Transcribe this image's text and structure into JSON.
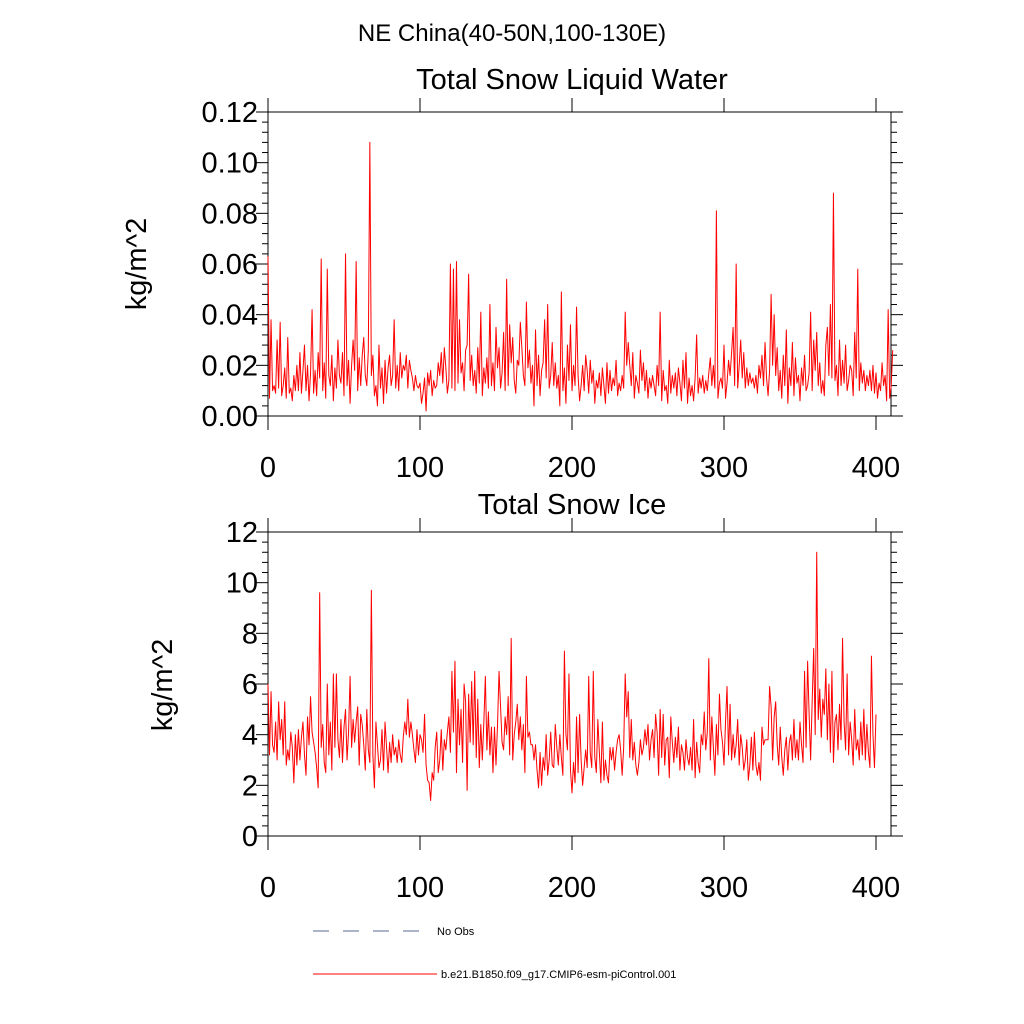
{
  "figure": {
    "suptitle": "NE China(40-50N,100-130E)"
  },
  "legend": {
    "items": [
      {
        "label": "No Obs",
        "color": "#5a6a9a",
        "style": "dashed"
      },
      {
        "label": "b.e21.B1850.f09_g17.CMIP6-esm-piControl.001",
        "color": "#ff0000",
        "style": "solid"
      }
    ]
  },
  "chart_data": [
    {
      "type": "line",
      "title": "Total Snow Liquid Water",
      "xlabel": "",
      "ylabel": "kg/m^2",
      "xlim": [
        0,
        400
      ],
      "ylim": [
        0,
        0.12
      ],
      "xticks": [
        "0",
        "100",
        "200",
        "300",
        "400"
      ],
      "yticks": [
        "0.00",
        "0.02",
        "0.04",
        "0.06",
        "0.08",
        "0.10",
        "0.12"
      ],
      "grid": false,
      "series": [
        {
          "name": "b.e21.B1850.f09_g17.CMIP6-esm-piControl.001",
          "color": "#ff0000",
          "x_start": 0,
          "x_step": 1,
          "values": [
            0.063,
            0.007,
            0.038,
            0.01,
            0.012,
            0.009,
            0.03,
            0.011,
            0.037,
            0.008,
            0.012,
            0.019,
            0.007,
            0.031,
            0.009,
            0.011,
            0.006,
            0.016,
            0.01,
            0.02,
            0.01,
            0.025,
            0.009,
            0.018,
            0.028,
            0.01,
            0.02,
            0.006,
            0.017,
            0.042,
            0.009,
            0.018,
            0.008,
            0.025,
            0.015,
            0.062,
            0.01,
            0.021,
            0.007,
            0.058,
            0.016,
            0.012,
            0.024,
            0.006,
            0.019,
            0.011,
            0.03,
            0.016,
            0.013,
            0.025,
            0.008,
            0.064,
            0.012,
            0.022,
            0.005,
            0.02,
            0.03,
            0.018,
            0.061,
            0.01,
            0.023,
            0.012,
            0.024,
            0.031,
            0.016,
            0.012,
            0.026,
            0.108,
            0.016,
            0.024,
            0.008,
            0.012,
            0.004,
            0.028,
            0.011,
            0.019,
            0.005,
            0.022,
            0.009,
            0.019,
            0.024,
            0.012,
            0.016,
            0.038,
            0.011,
            0.02,
            0.01,
            0.025,
            0.015,
            0.02,
            0.018,
            0.024,
            0.011,
            0.022,
            0.018,
            0.015,
            0.01,
            0.016,
            0.012,
            0.011,
            0.013,
            0.005,
            0.009,
            0.015,
            0.002,
            0.017,
            0.012,
            0.018,
            0.008,
            0.014,
            0.011,
            0.012,
            0.021,
            0.016,
            0.025,
            0.013,
            0.027,
            0.019,
            0.009,
            0.014,
            0.06,
            0.011,
            0.058,
            0.01,
            0.061,
            0.013,
            0.038,
            0.017,
            0.021,
            0.01,
            0.026,
            0.028,
            0.056,
            0.014,
            0.024,
            0.012,
            0.018,
            0.009,
            0.027,
            0.013,
            0.041,
            0.008,
            0.019,
            0.013,
            0.023,
            0.011,
            0.044,
            0.012,
            0.021,
            0.01,
            0.035,
            0.019,
            0.027,
            0.011,
            0.017,
            0.033,
            0.01,
            0.054,
            0.012,
            0.036,
            0.021,
            0.031,
            0.014,
            0.009,
            0.022,
            0.02,
            0.037,
            0.027,
            0.016,
            0.012,
            0.045,
            0.019,
            0.026,
            0.013,
            0.02,
            0.004,
            0.034,
            0.012,
            0.024,
            0.008,
            0.018,
            0.021,
            0.038,
            0.015,
            0.044,
            0.011,
            0.016,
            0.029,
            0.012,
            0.021,
            0.011,
            0.016,
            0.004,
            0.049,
            0.01,
            0.019,
            0.005,
            0.028,
            0.014,
            0.036,
            0.01,
            0.02,
            0.012,
            0.043,
            0.016,
            0.006,
            0.012,
            0.02,
            0.01,
            0.024,
            0.018,
            0.009,
            0.022,
            0.013,
            0.018,
            0.005,
            0.014,
            0.011,
            0.017,
            0.008,
            0.019,
            0.012,
            0.005,
            0.021,
            0.009,
            0.018,
            0.01,
            0.015,
            0.012,
            0.022,
            0.008,
            0.013,
            0.01,
            0.016,
            0.011,
            0.041,
            0.02,
            0.029,
            0.02,
            0.012,
            0.025,
            0.007,
            0.016,
            0.013,
            0.009,
            0.026,
            0.014,
            0.021,
            0.01,
            0.018,
            0.007,
            0.015,
            0.011,
            0.016,
            0.012,
            0.008,
            0.02,
            0.012,
            0.041,
            0.006,
            0.018,
            0.01,
            0.012,
            0.005,
            0.022,
            0.009,
            0.016,
            0.011,
            0.017,
            0.008,
            0.019,
            0.013,
            0.006,
            0.022,
            0.011,
            0.025,
            0.005,
            0.015,
            0.008,
            0.012,
            0.006,
            0.015,
            0.032,
            0.009,
            0.015,
            0.011,
            0.016,
            0.009,
            0.014,
            0.01,
            0.017,
            0.023,
            0.012,
            0.02,
            0.011,
            0.081,
            0.007,
            0.013,
            0.015,
            0.011,
            0.028,
            0.007,
            0.013,
            0.022,
            0.016,
            0.025,
            0.035,
            0.012,
            0.06,
            0.011,
            0.02,
            0.03,
            0.015,
            0.025,
            0.011,
            0.019,
            0.012,
            0.017,
            0.013,
            0.015,
            0.011,
            0.016,
            0.009,
            0.02,
            0.015,
            0.024,
            0.012,
            0.029,
            0.015,
            0.008,
            0.018,
            0.048,
            0.02,
            0.04,
            0.016,
            0.027,
            0.01,
            0.018,
            0.007,
            0.024,
            0.012,
            0.034,
            0.005,
            0.019,
            0.012,
            0.029,
            0.008,
            0.023,
            0.013,
            0.016,
            0.006,
            0.019,
            0.012,
            0.024,
            0.01,
            0.012,
            0.017,
            0.041,
            0.01,
            0.03,
            0.018,
            0.033,
            0.012,
            0.021,
            0.009,
            0.014,
            0.008,
            0.028,
            0.035,
            0.016,
            0.044,
            0.015,
            0.088,
            0.014,
            0.02,
            0.008,
            0.03,
            0.012,
            0.022,
            0.013,
            0.028,
            0.01,
            0.014,
            0.02,
            0.018,
            0.008,
            0.033,
            0.015,
            0.058,
            0.01,
            0.021,
            0.013,
            0.018,
            0.01,
            0.016,
            0.012,
            0.018,
            0.01,
            0.02,
            0.009,
            0.017,
            0.007,
            0.013,
            0.01,
            0.021,
            0.012,
            0.016,
            0.006,
            0.042,
            0.007,
            0.012,
            0.026
          ]
        }
      ]
    },
    {
      "type": "line",
      "title": "Total Snow Ice",
      "xlabel": "",
      "ylabel": "kg/m^2",
      "xlim": [
        0,
        400
      ],
      "ylim": [
        0,
        12
      ],
      "xticks": [
        "0",
        "100",
        "200",
        "300",
        "400"
      ],
      "yticks": [
        "0",
        "2",
        "4",
        "6",
        "8",
        "10",
        "12"
      ],
      "grid": false,
      "series": [
        {
          "name": "b.e21.B1850.f09_g17.CMIP6-esm-piControl.001",
          "color": "#ff0000",
          "x_start": 0,
          "x_step": 1,
          "values": [
            6.0,
            3.2,
            5.7,
            3.6,
            3.3,
            4.5,
            3.0,
            5.3,
            3.8,
            4.6,
            3.2,
            5.3,
            2.8,
            3.4,
            3.0,
            4.1,
            3.5,
            2.1,
            4.0,
            2.8,
            4.2,
            3.0,
            3.9,
            4.5,
            3.2,
            2.4,
            4.7,
            3.6,
            5.5,
            4.1,
            3.7,
            3.3,
            2.7,
            1.9,
            9.6,
            3.5,
            4.4,
            2.9,
            2.5,
            6.0,
            3.2,
            4.5,
            2.6,
            6.4,
            3.5,
            6.4,
            3.8,
            3.1,
            4.6,
            2.9,
            4.3,
            5.0,
            3.0,
            4.1,
            6.3,
            3.5,
            4.6,
            3.7,
            4.5,
            5.1,
            2.8,
            4.8,
            4.4,
            3.6,
            2.6,
            5.0,
            3.4,
            2.9,
            9.7,
            3.2,
            1.9,
            4.5,
            3.6,
            2.7,
            3.0,
            4.2,
            2.6,
            4.5,
            3.5,
            2.5,
            3.7,
            2.9,
            4.0,
            3.2,
            3.5,
            2.9,
            3.8,
            3.2,
            2.9,
            3.9,
            4.5,
            4.0,
            5.4,
            3.9,
            4.5,
            4.0,
            3.4,
            2.9,
            4.2,
            3.2,
            4.0,
            3.8,
            3.3,
            4.8,
            2.8,
            2.2,
            2.1,
            1.4,
            2.5,
            2.2,
            3.5,
            4.1,
            2.5,
            3.0,
            4.2,
            2.6,
            3.8,
            3.4,
            4.1,
            4.7,
            3.3,
            6.5,
            4.1,
            6.9,
            2.5,
            5.4,
            3.6,
            5.0,
            2.9,
            6.0,
            5.3,
            1.8,
            5.6,
            3.7,
            6.1,
            3.6,
            6.5,
            3.1,
            5.4,
            2.7,
            4.4,
            3.0,
            4.5,
            6.3,
            3.4,
            4.9,
            3.2,
            4.3,
            2.5,
            4.3,
            2.8,
            4.4,
            6.5,
            5.1,
            3.7,
            3.4,
            4.7,
            4.0,
            5.5,
            3.2,
            7.8,
            3.0,
            4.0,
            4.5,
            5.2,
            3.8,
            4.7,
            3.4,
            4.4,
            2.5,
            6.3,
            3.9,
            4.1,
            3.6,
            3.6,
            3.0,
            3.6,
            2.6,
            1.9,
            3.3,
            2.0,
            3.1,
            2.6,
            4.0,
            2.4,
            3.0,
            4.1,
            2.8,
            2.7,
            4.4,
            3.5,
            2.8,
            4.0,
            3.1,
            2.4,
            7.3,
            4.0,
            3.4,
            6.4,
            2.6,
            1.7,
            2.9,
            2.1,
            4.7,
            2.5,
            4.8,
            3.0,
            2.0,
            2.7,
            3.4,
            2.7,
            6.3,
            3.3,
            2.7,
            6.5,
            3.1,
            2.5,
            4.6,
            3.3,
            2.1,
            4.5,
            2.2,
            3.0,
            2.4,
            2.1,
            3.5,
            3.0,
            3.5,
            2.6,
            3.3,
            3.8,
            4.0,
            3.4,
            2.4,
            3.5,
            6.4,
            4.7,
            5.7,
            3.1,
            4.6,
            3.0,
            3.7,
            2.8,
            2.4,
            2.9,
            3.8,
            3.2,
            3.5,
            4.2,
            3.6,
            4.4,
            3.0,
            3.8,
            4.2,
            3.1,
            4.8,
            4.1,
            2.4,
            5.0,
            3.1,
            4.8,
            2.8,
            3.8,
            3.9,
            2.3,
            4.7,
            3.7,
            2.9,
            3.9,
            3.1,
            4.3,
            2.6,
            3.6,
            3.3,
            2.6,
            3.8,
            3.1,
            2.8,
            3.5,
            2.6,
            4.6,
            2.3,
            3.7,
            2.9,
            2.5,
            4.0,
            3.6,
            4.9,
            3.4,
            4.1,
            7.0,
            3.0,
            4.7,
            3.5,
            2.4,
            4.4,
            3.2,
            5.6,
            4.2,
            3.7,
            2.8,
            4.5,
            5.9,
            3.2,
            5.2,
            3.0,
            4.0,
            3.1,
            3.6,
            4.6,
            2.8,
            4.0,
            3.5,
            2.6,
            3.0,
            3.8,
            2.2,
            2.8,
            3.9,
            2.6,
            4.1,
            2.8,
            2.4,
            2.9,
            2.2,
            4.3,
            3.6,
            3.8,
            3.8,
            3.8,
            5.9,
            5.1,
            3.0,
            4.7,
            5.3,
            3.6,
            2.8,
            4.3,
            3.1,
            2.4,
            3.4,
            3.9,
            2.6,
            3.7,
            4.0,
            3.0,
            4.6,
            3.1,
            3.8,
            3.0,
            4.5,
            3.6,
            2.9,
            6.5,
            3.5,
            6.9,
            4.8,
            3.0,
            5.3,
            7.4,
            4.0,
            11.2,
            4.6,
            5.8,
            3.9,
            5.4,
            4.8,
            6.6,
            3.8,
            6.0,
            3.3,
            6.5,
            2.9,
            4.5,
            4.8,
            3.4,
            5.2,
            3.8,
            7.8,
            4.5,
            3.4,
            6.4,
            3.2,
            4.5,
            3.8,
            2.8,
            5.0,
            3.4,
            3.8,
            3.0,
            4.5,
            3.2,
            5.0,
            3.0,
            4.4,
            3.3,
            2.7,
            7.1,
            4.0,
            2.7,
            4.8
          ]
        }
      ]
    }
  ]
}
